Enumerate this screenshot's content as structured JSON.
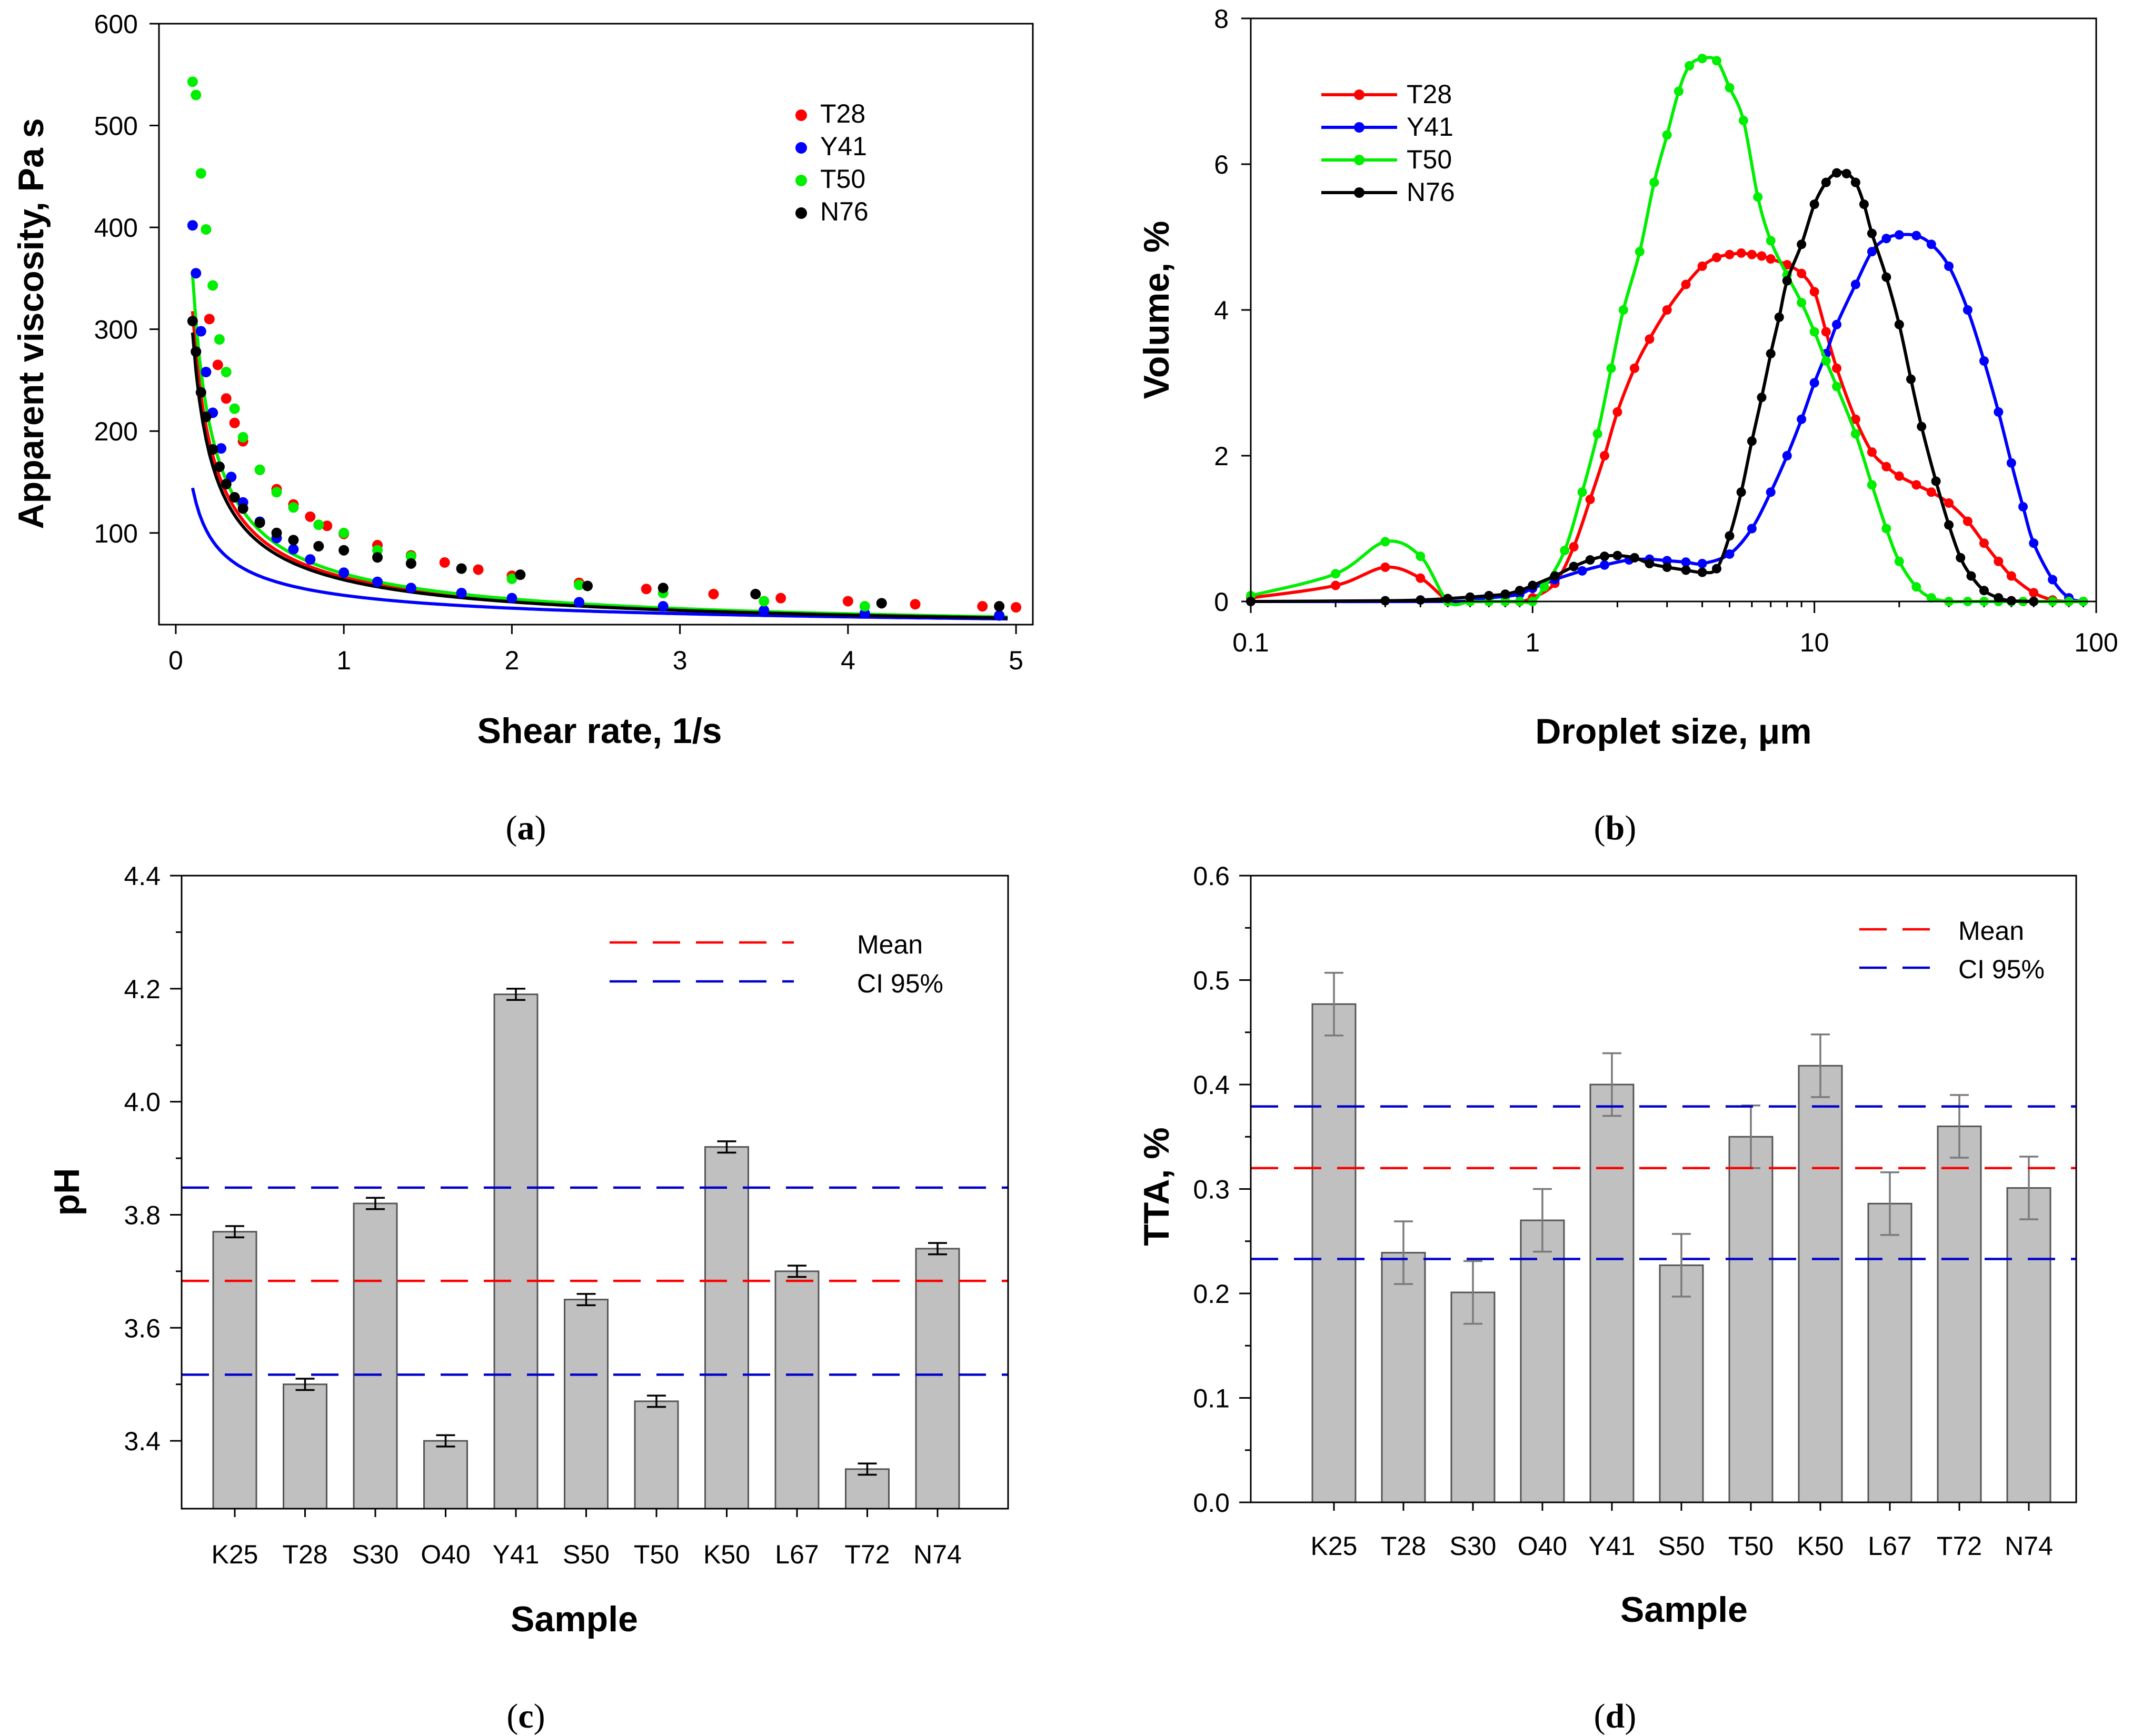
{
  "chart_data": [
    {
      "panel": "(a)",
      "type": "scatter",
      "xlabel": "Shear rate, 1/s",
      "ylabel": "Apparent viscosity, Pa s",
      "xlim": [
        -0.1,
        5.1
      ],
      "ylim": [
        10,
        600
      ],
      "xticks": [
        0,
        1,
        2,
        3,
        4,
        5
      ],
      "yticks": [
        100,
        200,
        300,
        400,
        500,
        600
      ],
      "fit_lines": true,
      "legend": [
        "T28",
        "Y41",
        "T50",
        "N76"
      ],
      "series": [
        {
          "name": "T28",
          "color": "#ff0000",
          "fit_k": 56.5,
          "fit_n": 0.25,
          "x": [
            0.2,
            0.25,
            0.3,
            0.35,
            0.4,
            0.5,
            0.6,
            0.7,
            0.8,
            0.9,
            1.0,
            1.2,
            1.4,
            1.6,
            1.8,
            2.0,
            2.4,
            2.8,
            3.2,
            3.6,
            4.0,
            4.4,
            4.8,
            5.0
          ],
          "y": [
            310,
            265,
            232,
            208,
            190,
            162,
            143,
            128,
            116,
            107,
            99,
            88,
            78,
            71,
            64,
            58,
            51,
            45,
            40,
            36,
            33,
            30,
            28,
            27
          ]
        },
        {
          "name": "Y41",
          "color": "#0000ff",
          "fit_k": 38.8,
          "fit_n": 0.43,
          "x": [
            0.1,
            0.12,
            0.15,
            0.18,
            0.22,
            0.27,
            0.33,
            0.4,
            0.5,
            0.6,
            0.7,
            0.8,
            1.0,
            1.2,
            1.4,
            1.7,
            2.0,
            2.4,
            2.9,
            3.5,
            4.1,
            4.9
          ],
          "y": [
            402,
            355,
            298,
            258,
            218,
            183,
            155,
            130,
            111,
            95,
            84,
            74,
            61,
            52,
            46,
            41,
            36,
            32,
            28,
            24,
            21,
            19
          ]
        },
        {
          "name": "T50",
          "color": "#00ee00",
          "fit_k": 60,
          "fit_n": 0.23,
          "x": [
            0.1,
            0.12,
            0.15,
            0.18,
            0.22,
            0.26,
            0.3,
            0.35,
            0.4,
            0.5,
            0.6,
            0.7,
            0.85,
            1.0,
            1.2,
            1.4,
            1.7,
            2.0,
            2.4,
            2.9,
            3.5,
            4.1
          ],
          "y": [
            543,
            530,
            453,
            398,
            343,
            290,
            258,
            222,
            194,
            162,
            140,
            125,
            108,
            100,
            83,
            77,
            65,
            55,
            49,
            41,
            33,
            28
          ]
        },
        {
          "name": "N76",
          "color": "#000000",
          "fit_k": 54,
          "fit_n": 0.26,
          "x": [
            0.1,
            0.12,
            0.15,
            0.18,
            0.22,
            0.26,
            0.3,
            0.35,
            0.4,
            0.5,
            0.6,
            0.7,
            0.85,
            1.0,
            1.2,
            1.4,
            1.7,
            2.05,
            2.45,
            2.9,
            3.45,
            4.2,
            4.9
          ],
          "y": [
            308,
            278,
            238,
            214,
            182,
            165,
            148,
            135,
            124,
            110,
            100,
            93,
            87,
            83,
            76,
            70,
            65,
            59,
            48,
            46,
            40,
            31,
            28
          ]
        }
      ]
    },
    {
      "panel": "(b)",
      "type": "line",
      "xscale": "log",
      "xlabel": "Droplet size, μm",
      "ylabel": "Volume, %",
      "xlim": [
        0.1,
        100
      ],
      "ylim": [
        0,
        8
      ],
      "xticks": [
        0.1,
        1,
        10,
        100
      ],
      "xtick_labels": [
        "0.1",
        "1",
        "10",
        "100"
      ],
      "yticks": [
        0,
        2,
        4,
        6,
        8
      ],
      "legend": [
        "T28",
        "Y41",
        "T50",
        "N76"
      ],
      "series": [
        {
          "name": "T28",
          "color": "#ff0000",
          "x": [
            0.1,
            0.2,
            0.3,
            0.4,
            0.5,
            0.6,
            0.7,
            0.8,
            0.9,
            1.0,
            1.2,
            1.4,
            1.6,
            1.8,
            2.0,
            2.3,
            2.6,
            3.0,
            3.5,
            4.0,
            4.5,
            5.0,
            5.5,
            6.0,
            6.5,
            7.0,
            8.0,
            9.0,
            10,
            11,
            12,
            14,
            16,
            18,
            20,
            23,
            26,
            30,
            35,
            40,
            45,
            50,
            60,
            70,
            80,
            90
          ],
          "y": [
            0.05,
            0.22,
            0.47,
            0.32,
            0.02,
            0.0,
            0.0,
            0.0,
            0.0,
            0.05,
            0.25,
            0.75,
            1.4,
            2.0,
            2.6,
            3.2,
            3.6,
            4.0,
            4.35,
            4.6,
            4.72,
            4.76,
            4.78,
            4.76,
            4.74,
            4.7,
            4.62,
            4.5,
            4.25,
            3.7,
            3.2,
            2.5,
            2.05,
            1.85,
            1.72,
            1.6,
            1.5,
            1.35,
            1.1,
            0.8,
            0.55,
            0.35,
            0.12,
            0.02,
            0.0,
            0.0
          ]
        },
        {
          "name": "Y41",
          "color": "#0000ff",
          "x": [
            0.1,
            0.5,
            0.6,
            0.7,
            0.8,
            0.9,
            1.0,
            1.2,
            1.5,
            1.8,
            2.2,
            2.6,
            3.0,
            3.5,
            4.0,
            5.0,
            6.0,
            7.0,
            8.0,
            9.0,
            10,
            11,
            12,
            14,
            16,
            18,
            20,
            23,
            26,
            30,
            35,
            40,
            45,
            50,
            55,
            60,
            70,
            80,
            90
          ],
          "y": [
            0.0,
            0.0,
            0.02,
            0.05,
            0.07,
            0.1,
            0.18,
            0.3,
            0.42,
            0.5,
            0.57,
            0.58,
            0.56,
            0.54,
            0.52,
            0.65,
            1.0,
            1.5,
            2.0,
            2.5,
            3.0,
            3.4,
            3.8,
            4.35,
            4.8,
            4.98,
            5.03,
            5.02,
            4.9,
            4.6,
            4.0,
            3.3,
            2.6,
            1.9,
            1.3,
            0.8,
            0.3,
            0.05,
            0.0
          ]
        },
        {
          "name": "T50",
          "color": "#00ee00",
          "x": [
            0.1,
            0.2,
            0.3,
            0.4,
            0.5,
            0.6,
            0.7,
            0.8,
            0.9,
            1.0,
            1.1,
            1.3,
            1.5,
            1.7,
            1.9,
            2.1,
            2.4,
            2.7,
            3.0,
            3.3,
            3.6,
            4.0,
            4.5,
            5.0,
            5.6,
            6.3,
            7.0,
            8.0,
            9.0,
            10,
            11,
            12,
            14,
            16,
            18,
            20,
            23,
            26,
            30,
            35,
            40,
            45,
            50,
            55,
            60,
            70,
            80,
            90
          ],
          "y": [
            0.08,
            0.38,
            0.82,
            0.62,
            0.0,
            0.0,
            0.0,
            0.0,
            0.0,
            0.0,
            0.2,
            0.7,
            1.5,
            2.3,
            3.2,
            4.0,
            4.8,
            5.75,
            6.4,
            7.0,
            7.35,
            7.45,
            7.42,
            7.05,
            6.6,
            5.55,
            4.95,
            4.48,
            4.1,
            3.7,
            3.3,
            2.95,
            2.3,
            1.6,
            1.0,
            0.55,
            0.2,
            0.05,
            0.0,
            0.0,
            0.0,
            0.0,
            0.0,
            0.0,
            0.0,
            0.0,
            0.0,
            0.0
          ]
        },
        {
          "name": "N76",
          "color": "#000000",
          "x": [
            0.1,
            0.3,
            0.4,
            0.5,
            0.6,
            0.7,
            0.8,
            0.9,
            1.0,
            1.2,
            1.4,
            1.6,
            1.8,
            2.0,
            2.3,
            2.6,
            3.0,
            3.5,
            4.0,
            4.5,
            5.0,
            5.5,
            6.0,
            6.5,
            7.0,
            7.5,
            8.0,
            9.0,
            10,
            11,
            12,
            13,
            14,
            15,
            16,
            18,
            20,
            22,
            24,
            27,
            30,
            33,
            36,
            40,
            45,
            50,
            60
          ],
          "y": [
            0.0,
            0.01,
            0.02,
            0.04,
            0.06,
            0.08,
            0.1,
            0.15,
            0.22,
            0.35,
            0.48,
            0.57,
            0.62,
            0.63,
            0.6,
            0.52,
            0.47,
            0.43,
            0.4,
            0.45,
            0.9,
            1.5,
            2.2,
            2.8,
            3.4,
            3.9,
            4.4,
            4.9,
            5.45,
            5.75,
            5.88,
            5.87,
            5.75,
            5.45,
            5.05,
            4.45,
            3.8,
            3.05,
            2.4,
            1.65,
            1.05,
            0.6,
            0.35,
            0.15,
            0.05,
            0.01,
            0.0
          ]
        }
      ]
    },
    {
      "panel": "(c)",
      "type": "bar",
      "xlabel": "Sample",
      "ylabel": "pH",
      "ylim": [
        3.28,
        4.4
      ],
      "yticks": [
        3.4,
        3.6,
        3.8,
        4.0,
        4.2,
        4.4
      ],
      "ytick_labels": [
        "3.4",
        "3.6",
        "3.8",
        "4.0",
        "4.2",
        "4.4"
      ],
      "categories": [
        "K25",
        "T28",
        "S30",
        "O40",
        "Y41",
        "S50",
        "T50",
        "K50",
        "L67",
        "T72",
        "N74"
      ],
      "values": [
        3.77,
        3.5,
        3.82,
        3.4,
        4.19,
        3.65,
        3.47,
        3.92,
        3.7,
        3.35,
        3.74
      ],
      "errors": [
        0.01,
        0.01,
        0.01,
        0.01,
        0.01,
        0.01,
        0.01,
        0.01,
        0.01,
        0.01,
        0.01
      ],
      "mean": 3.683,
      "ci95": [
        3.517,
        3.848
      ],
      "legend": [
        "Mean",
        "CI 95%"
      ],
      "mean_color": "#ff0000",
      "ci_color": "#0000cc"
    },
    {
      "panel": "(d)",
      "type": "bar",
      "xlabel": "Sample",
      "ylabel": "TTA, %",
      "ylim": [
        0,
        0.6
      ],
      "yticks": [
        0.0,
        0.1,
        0.2,
        0.3,
        0.4,
        0.5,
        0.6
      ],
      "ytick_labels": [
        "0.0",
        "0.1",
        "0.2",
        "0.3",
        "0.4",
        "0.5",
        "0.6"
      ],
      "categories": [
        "K25",
        "T28",
        "S30",
        "O40",
        "Y41",
        "S50",
        "T50",
        "K50",
        "L67",
        "T72",
        "N74"
      ],
      "values": [
        0.477,
        0.239,
        0.201,
        0.27,
        0.4,
        0.227,
        0.35,
        0.418,
        0.286,
        0.36,
        0.301
      ],
      "errors": [
        0.03,
        0.03,
        0.03,
        0.03,
        0.03,
        0.03,
        0.03,
        0.03,
        0.03,
        0.03,
        0.03
      ],
      "mean": 0.32,
      "ci95": [
        0.233,
        0.379
      ],
      "legend": [
        "Mean",
        "CI 95%"
      ],
      "mean_color": "#ff0000",
      "ci_color": "#0000cc"
    }
  ],
  "panel_labels": {
    "a": {
      "open": "(",
      "letter": "a",
      "close": ")"
    },
    "b": {
      "open": "(",
      "letter": "b",
      "close": ")"
    },
    "c": {
      "open": "(",
      "letter": "c",
      "close": ")"
    },
    "d": {
      "open": "(",
      "letter": "d",
      "close": ")"
    }
  }
}
